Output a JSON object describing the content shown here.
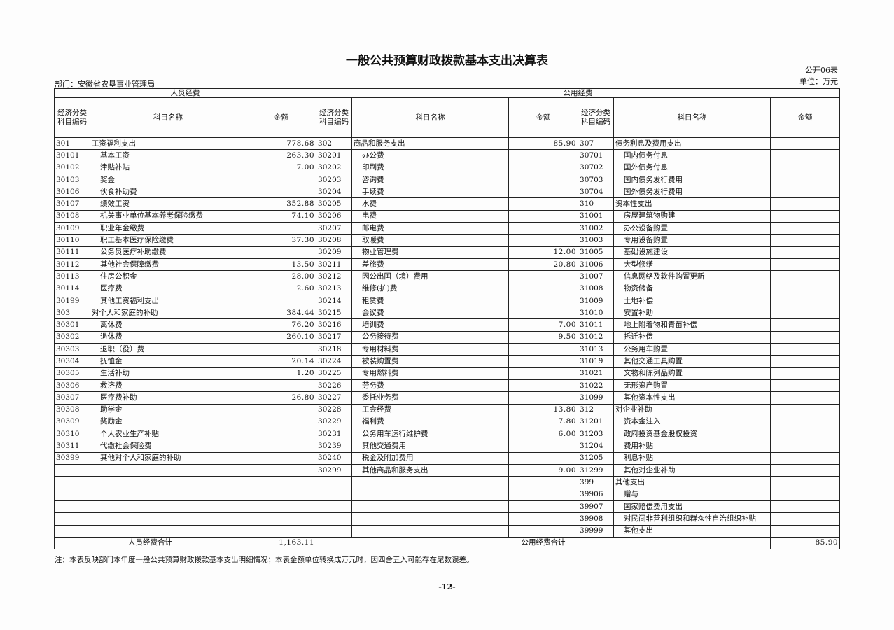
{
  "header": {
    "title": "一般公共预算财政拨款基本支出决算表",
    "form_no": "公开06表",
    "department": "部门：安徽省农垦事业管理局",
    "unit": "单位：万元"
  },
  "table": {
    "groups": [
      "人员经费",
      "公用经费"
    ],
    "columns": [
      "经济分类科目编码",
      "科目名称",
      "金额",
      "经济分类科目编码",
      "科目名称",
      "金额",
      "经济分类科目编码",
      "科目名称",
      "金额"
    ],
    "rows": [
      [
        "301",
        "工资福利支出",
        "778.68",
        "302",
        "商品和服务支出",
        "85.90",
        "307",
        "债务利息及费用支出",
        null
      ],
      [
        "30101",
        "基本工资",
        "263.30",
        "30201",
        "办公费",
        null,
        "30701",
        "国内债务付息",
        null
      ],
      [
        "30102",
        "津贴补贴",
        "7.00",
        "30202",
        "印刷费",
        null,
        "30702",
        "国外债务付息",
        null
      ],
      [
        "30103",
        "奖金",
        null,
        "30203",
        "咨询费",
        null,
        "30703",
        "国内债务发行费用",
        null
      ],
      [
        "30106",
        "伙食补助费",
        null,
        "30204",
        "手续费",
        null,
        "30704",
        "国外债务发行费用",
        null
      ],
      [
        "30107",
        "绩效工资",
        "352.88",
        "30205",
        "水费",
        null,
        "310",
        "资本性支出",
        null
      ],
      [
        "30108",
        "机关事业单位基本养老保险缴费",
        "74.10",
        "30206",
        "电费",
        null,
        "31001",
        "房屋建筑物购建",
        null
      ],
      [
        "30109",
        "职业年金缴费",
        null,
        "30207",
        "邮电费",
        null,
        "31002",
        "办公设备购置",
        null
      ],
      [
        "30110",
        "职工基本医疗保险缴费",
        "37.30",
        "30208",
        "取暖费",
        null,
        "31003",
        "专用设备购置",
        null
      ],
      [
        "30111",
        "公务员医疗补助缴费",
        null,
        "30209",
        "物业管理费",
        "12.00",
        "31005",
        "基础设施建设",
        null
      ],
      [
        "30112",
        "其他社会保障缴费",
        "13.50",
        "30211",
        "差旅费",
        "20.80",
        "31006",
        "大型修缮",
        null
      ],
      [
        "30113",
        "住房公积金",
        "28.00",
        "30212",
        "因公出国（境）费用",
        null,
        "31007",
        "信息网络及软件购置更新",
        null
      ],
      [
        "30114",
        "医疗费",
        "2.60",
        "30213",
        "维修(护)费",
        null,
        "31008",
        "物资储备",
        null
      ],
      [
        "30199",
        "其他工资福利支出",
        null,
        "30214",
        "租赁费",
        null,
        "31009",
        "土地补偿",
        null
      ],
      [
        "303",
        "对个人和家庭的补助",
        "384.44",
        "30215",
        "会议费",
        null,
        "31010",
        "安置补助",
        null
      ],
      [
        "30301",
        "离休费",
        "76.20",
        "30216",
        "培训费",
        "7.00",
        "31011",
        "地上附着物和青苗补偿",
        null
      ],
      [
        "30302",
        "退休费",
        "260.10",
        "30217",
        "公务接待费",
        "9.50",
        "31012",
        "拆迁补偿",
        null
      ],
      [
        "30303",
        "退职（役）费",
        null,
        "30218",
        "专用材料费",
        null,
        "31013",
        "公务用车购置",
        null
      ],
      [
        "30304",
        "抚恤金",
        "20.14",
        "30224",
        "被装购置费",
        null,
        "31019",
        "其他交通工具购置",
        null
      ],
      [
        "30305",
        "生活补助",
        "1.20",
        "30225",
        "专用燃料费",
        null,
        "31021",
        "文物和陈列品购置",
        null
      ],
      [
        "30306",
        "救济费",
        null,
        "30226",
        "劳务费",
        null,
        "31022",
        "无形资产购置",
        null
      ],
      [
        "30307",
        "医疗费补助",
        "26.80",
        "30227",
        "委托业务费",
        null,
        "31099",
        "其他资本性支出",
        null
      ],
      [
        "30308",
        "助学金",
        null,
        "30228",
        "工会经费",
        "13.80",
        "312",
        "对企业补助",
        null
      ],
      [
        "30309",
        "奖励金",
        null,
        "30229",
        "福利费",
        "7.80",
        "31201",
        "资本金注入",
        null
      ],
      [
        "30310",
        "个人农业生产补贴",
        null,
        "30231",
        "公务用车运行维护费",
        "6.00",
        "31203",
        "政府投资基金股权投资",
        null
      ],
      [
        "30311",
        "代缴社会保险费",
        null,
        "30239",
        "其他交通费用",
        null,
        "31204",
        "费用补贴",
        null
      ],
      [
        "30399",
        "其他对个人和家庭的补助",
        null,
        "30240",
        "税金及附加费用",
        null,
        "31205",
        "利息补贴",
        null
      ],
      [
        null,
        null,
        null,
        "30299",
        "其他商品和服务支出",
        "9.00",
        "31299",
        "其他对企业补助",
        null
      ],
      [
        null,
        null,
        null,
        null,
        null,
        null,
        "399",
        "其他支出",
        null
      ],
      [
        null,
        null,
        null,
        null,
        null,
        null,
        "39906",
        "赠与",
        null
      ],
      [
        null,
        null,
        null,
        null,
        null,
        null,
        "39907",
        "国家赔偿费用支出",
        null
      ],
      [
        null,
        null,
        null,
        null,
        null,
        null,
        "39908",
        "对民间非营利组织和群众性自治组织补贴",
        null
      ],
      [
        null,
        null,
        null,
        null,
        null,
        null,
        "39999",
        "其他支出",
        null
      ]
    ],
    "totals": [
      "人员经费合计",
      "1,163.11",
      "公用经费合计",
      "85.90"
    ]
  },
  "footer": {
    "note": "注：本表反映部门本年度一般公共预算财政拨款基本支出明细情况；本表金额单位转换成万元时，因四舍五入可能存在尾数误差。",
    "page": "-12-"
  }
}
